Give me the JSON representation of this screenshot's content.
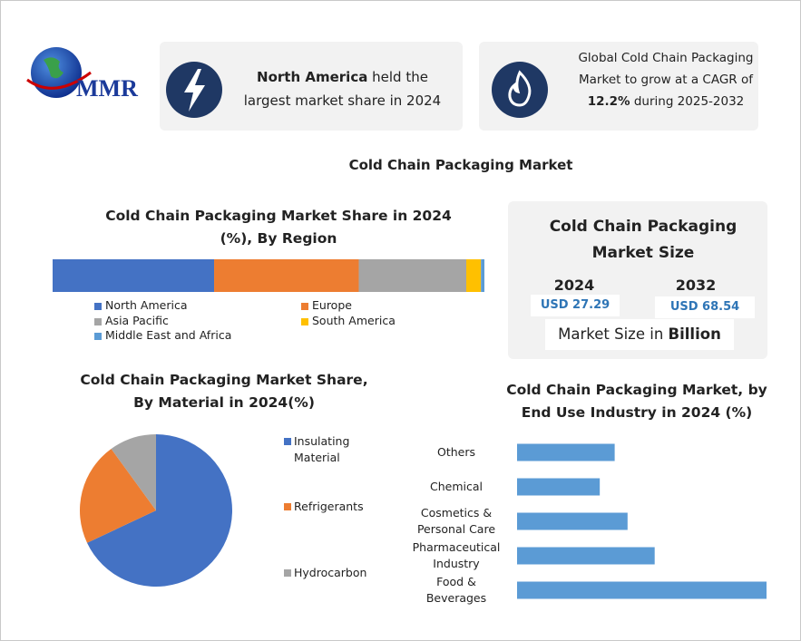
{
  "logo": {
    "text": "MMR"
  },
  "highlights": [
    {
      "bold": "North America",
      "text": "held the largest market share in 2024"
    },
    {
      "text": "Global Cold Chain Packaging Market to grow at a CAGR of",
      "bold": "12.2%",
      "text_after": "during 2025-2032"
    }
  ],
  "title": "Cold Chain Packaging Market",
  "market_size": {
    "title": "Cold Chain Packaging Market Size",
    "columns": [
      {
        "year": "2024",
        "value": "USD 27.29"
      },
      {
        "year": "2032",
        "value": "USD 68.54"
      }
    ],
    "unit_text": "Market Size in",
    "unit": "Billion"
  },
  "chart_data": [
    {
      "type": "stacked-bar",
      "title": "Cold Chain Packaging Market Share in 2024 (%), By Region",
      "series": [
        {
          "name": "North America",
          "color": "#4472c4",
          "values": [
            37.4
          ]
        },
        {
          "name": "Europe",
          "color": "#ed7d31",
          "values": [
            33.5
          ]
        },
        {
          "name": "Asia Pacific",
          "color": "#a5a5a5",
          "values": [
            24.9
          ]
        },
        {
          "name": "South America",
          "color": "#ffc000",
          "values": [
            3.4
          ]
        },
        {
          "name": "Middle East and Africa",
          "color": "#5b9bd5",
          "values": [
            0.8
          ]
        }
      ]
    },
    {
      "type": "pie",
      "title": "Cold Chain Packaging Market Share, By Material in 2024(%)",
      "categories": [
        "Insulating Material",
        "Refrigerants",
        "Hydrocarbon"
      ],
      "values": [
        68,
        22,
        10
      ],
      "colors": [
        "#4472c4",
        "#ed7d31",
        "#a5a5a5"
      ]
    },
    {
      "type": "bar",
      "orientation": "horizontal",
      "title": "Cold Chain Packaging Market, by End Use Industry in 2024 (%)",
      "categories": [
        "Others",
        "Chemical",
        "Cosmetics & Personal Care",
        "Pharmaceutical Industry",
        "Food & Beverages"
      ],
      "values": [
        14.4,
        12.2,
        16.3,
        20.3,
        36.8
      ],
      "color": "#5b9bd5"
    }
  ]
}
